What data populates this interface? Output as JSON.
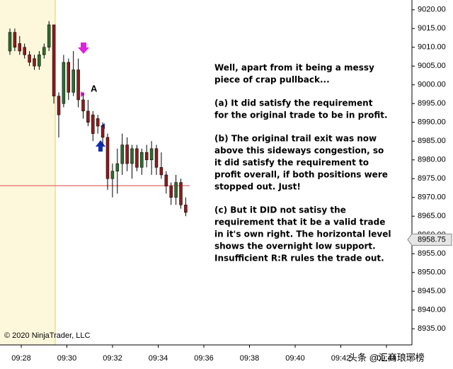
{
  "chart_data": {
    "type": "candlestick",
    "open": [
      9009,
      9014,
      9011,
      9010,
      9008,
      9007,
      9005,
      9008,
      9010,
      9016,
      8997,
      8995,
      9006,
      8998,
      9004,
      8996,
      8993,
      8992,
      8991,
      8989,
      8986,
      8975,
      8977,
      8979,
      8984,
      8979,
      8983,
      8978,
      8982,
      8980,
      8983,
      8978,
      8976,
      8973,
      8970,
      8974,
      8968
    ],
    "high": [
      9015,
      9015,
      9013,
      9011,
      9009,
      9008,
      9009,
      9011,
      9017,
      9016,
      8998,
      9008,
      9007,
      9009,
      9007,
      8998,
      8996,
      8993,
      8992,
      8990,
      8987,
      8979,
      8983,
      8987,
      8986,
      8984,
      8984,
      8983,
      8984,
      8985,
      8984,
      8982,
      8977,
      8974,
      8976,
      8975,
      8970
    ],
    "low": [
      9008,
      9009,
      9008,
      9007,
      9005,
      9004,
      9004,
      9007,
      9009,
      8995,
      8986,
      8994,
      8996,
      8997,
      8994,
      8991,
      8989,
      8985,
      8987,
      8984,
      8972,
      8970,
      8971,
      8976,
      8977,
      8975,
      8977,
      8976,
      8978,
      8976,
      8976,
      8975,
      8971,
      8968,
      8968,
      8967,
      8965
    ],
    "close": [
      9014,
      9010,
      9009,
      9008,
      9006,
      9005,
      9008,
      9010,
      9016,
      8997,
      8992,
      9006,
      8998,
      9004,
      8996,
      8993,
      8990,
      8987,
      8989,
      8986,
      8975,
      8977,
      8979,
      8984,
      8979,
      8983,
      8978,
      8982,
      8980,
      8983,
      8978,
      8976,
      8973,
      8970,
      8974,
      8968,
      8966
    ],
    "up_color": "#2e6b2e",
    "down_color": "#8b1c1c",
    "ylim": [
      8930.7,
      9022.6
    ],
    "yticks": [
      {
        "value": 9020,
        "label": "9020.00"
      },
      {
        "value": 9015,
        "label": "9015.00"
      },
      {
        "value": 9010,
        "label": "9010.00"
      },
      {
        "value": 9005,
        "label": "9005.00"
      },
      {
        "value": 9000,
        "label": "9000.00"
      },
      {
        "value": 8995,
        "label": "8995.00"
      },
      {
        "value": 8990,
        "label": "8990.00"
      },
      {
        "value": 8985,
        "label": "8985.00"
      },
      {
        "value": 8980,
        "label": "8980.00"
      },
      {
        "value": 8975,
        "label": "8975.00"
      },
      {
        "value": 8970,
        "label": "8970.00"
      },
      {
        "value": 8965,
        "label": "8965.00"
      },
      {
        "value": 8960,
        "label": "8960.00"
      },
      {
        "value": 8955,
        "label": "8955.00"
      },
      {
        "value": 8950,
        "label": "8950.00"
      },
      {
        "value": 8945,
        "label": "8945.00"
      },
      {
        "value": 8940,
        "label": "8940.00"
      },
      {
        "value": 8935,
        "label": "8935.00"
      }
    ],
    "xtick_labels": [
      "09:28",
      "09:30",
      "09:32",
      "09:34",
      "09:36",
      "09:38",
      "09:40",
      "09:42",
      "09:44"
    ],
    "last_price": {
      "value": 8958.75,
      "label": "8958.75"
    },
    "level": 8973.1,
    "level_color": "#e88080",
    "marker_label": "A",
    "annotation": [
      [
        "Well, apart from it being a messy",
        "piece of crap pullback..."
      ],
      [
        "(a) It did satisfy the requirement",
        "for the original trade to be in profit."
      ],
      [
        "(b) The original trail exit was now",
        "above this sideways congestion, so",
        "it did satisfy the requirement to",
        "profit overall, if both positions were",
        "stopped out. Just!"
      ],
      [
        "(c) But it DID not satisy the",
        "requirement that it be a valid trade",
        "in it's own right. The horizontal level",
        "shows the overnight low support.",
        "Insufficient R:R rules the trade out."
      ]
    ],
    "copyright": "© 2020 NinjaTrader, LLC",
    "watermark": "头条 @汇商琅琊榜"
  }
}
